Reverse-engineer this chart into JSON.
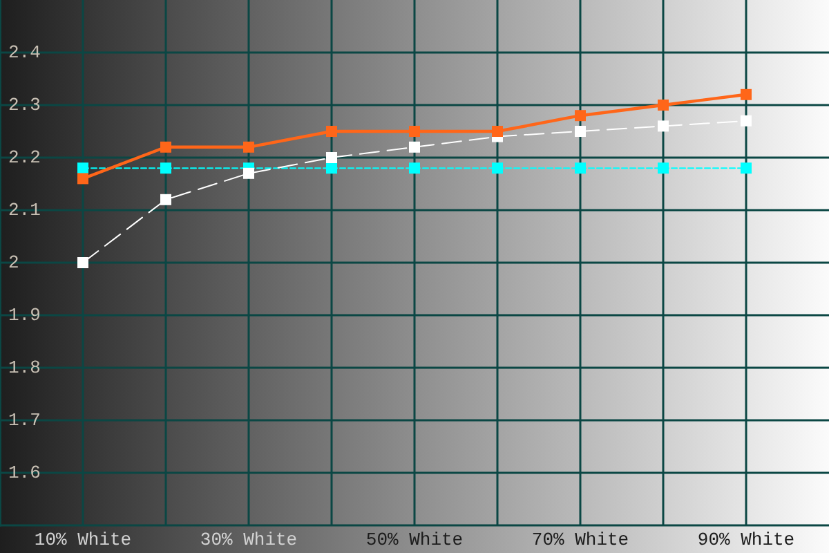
{
  "chart_data": {
    "type": "line",
    "x": [
      10,
      20,
      30,
      40,
      50,
      60,
      70,
      80,
      90
    ],
    "xlim": [
      0,
      100
    ],
    "xticks": [
      {
        "value": 10,
        "label": "10% White"
      },
      {
        "value": 20,
        "label": null
      },
      {
        "value": 30,
        "label": "30% White"
      },
      {
        "value": 40,
        "label": null
      },
      {
        "value": 50,
        "label": "50% White"
      },
      {
        "value": 60,
        "label": null
      },
      {
        "value": 70,
        "label": "70% White"
      },
      {
        "value": 80,
        "label": null
      },
      {
        "value": 90,
        "label": "90% White"
      }
    ],
    "ylim": [
      1.5,
      2.5
    ],
    "yticks": [
      1.6,
      1.7,
      1.8,
      1.9,
      2,
      2.1,
      2.2,
      2.3,
      2.4
    ],
    "grid": true,
    "marker": "square",
    "series": [
      {
        "color": "#ff6619",
        "line_style": "solid",
        "values": [
          2.16,
          2.22,
          2.22,
          2.25,
          2.25,
          2.25,
          2.28,
          2.3,
          2.32
        ]
      },
      {
        "color": "#ffffff",
        "line_style": "dashed",
        "values": [
          2.0,
          2.12,
          2.17,
          2.2,
          2.22,
          2.24,
          2.25,
          2.26,
          2.27
        ]
      },
      {
        "color": "#00ffff",
        "line_style": "dotted",
        "values": [
          2.18,
          2.18,
          2.18,
          2.18,
          2.18,
          2.18,
          2.18,
          2.18,
          2.18
        ]
      }
    ]
  }
}
